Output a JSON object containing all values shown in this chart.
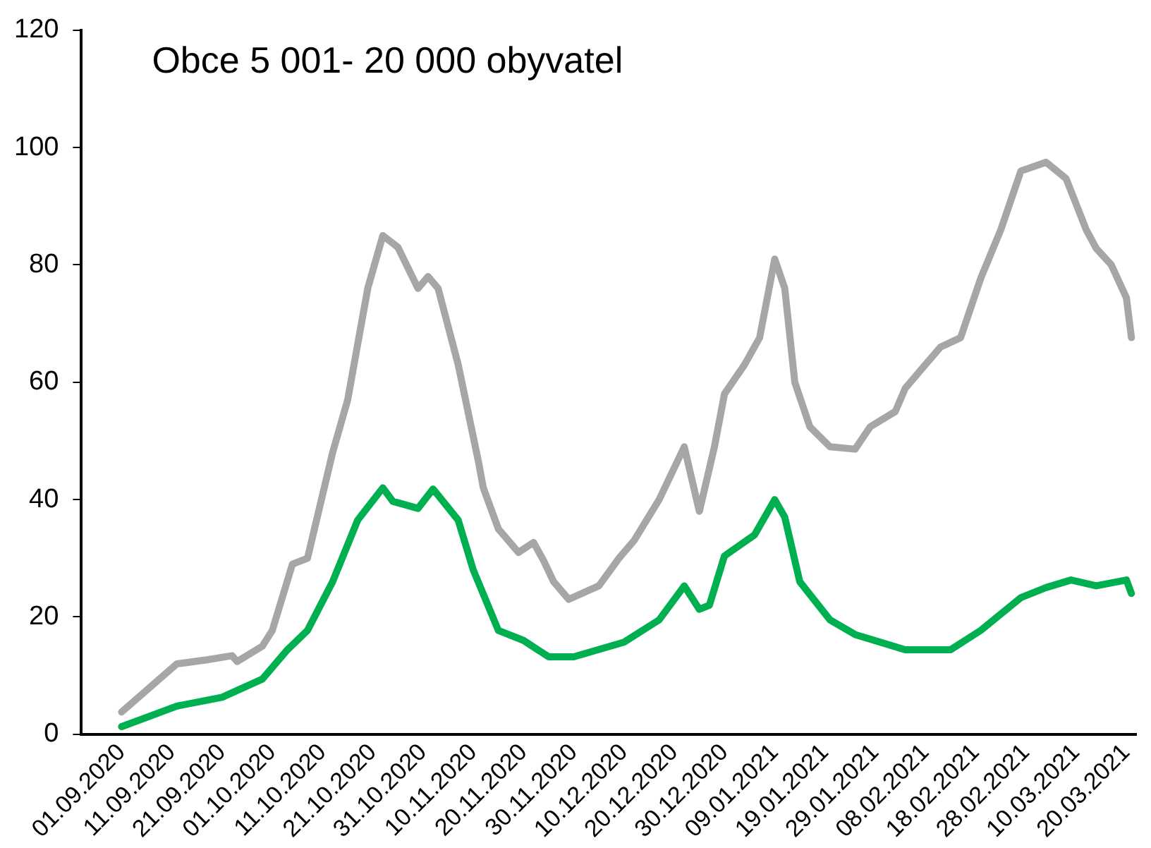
{
  "chart_data": {
    "type": "line",
    "title": "Obce 5 001- 20 000 obyvatel",
    "xlim": [
      "2020-08-24",
      "2021-03-22"
    ],
    "xticks": [
      {
        "value": "2020-09-01",
        "label": "01.09.2020"
      },
      {
        "value": "2020-09-11",
        "label": "11.09.2020"
      },
      {
        "value": "2020-09-21",
        "label": "21.09.2020"
      },
      {
        "value": "2020-10-01",
        "label": "01.10.2020"
      },
      {
        "value": "2020-10-11",
        "label": "11.10.2020"
      },
      {
        "value": "2020-10-21",
        "label": "21.10.2020"
      },
      {
        "value": "2020-10-31",
        "label": "31.10.2020"
      },
      {
        "value": "2020-11-10",
        "label": "10.11.2020"
      },
      {
        "value": "2020-11-20",
        "label": "20.11.2020"
      },
      {
        "value": "2020-11-30",
        "label": "30.11.2020"
      },
      {
        "value": "2020-12-10",
        "label": "10.12.2020"
      },
      {
        "value": "2020-12-20",
        "label": "20.12.2020"
      },
      {
        "value": "2020-12-30",
        "label": "30.12.2020"
      },
      {
        "value": "2021-01-09",
        "label": "09.01.2021"
      },
      {
        "value": "2021-01-19",
        "label": "19.01.2021"
      },
      {
        "value": "2021-01-29",
        "label": "29.01.2021"
      },
      {
        "value": "2021-02-08",
        "label": "08.02.2021"
      },
      {
        "value": "2021-02-18",
        "label": "18.02.2021"
      },
      {
        "value": "2021-02-28",
        "label": "28.02.2021"
      },
      {
        "value": "2021-03-10",
        "label": "10.03.2021"
      },
      {
        "value": "2021-03-20",
        "label": "20.03.2021"
      }
    ],
    "ylim": [
      0,
      120
    ],
    "yticks": [
      0,
      20,
      40,
      60,
      80,
      100,
      120
    ],
    "grid": false,
    "legend": false,
    "marker": "none",
    "line_style": "solid",
    "series": [
      {
        "color": "#a6a6a6",
        "x": [
          "2020-09-01",
          "2020-09-12",
          "2020-09-18",
          "2020-09-23",
          "2020-09-24",
          "2020-09-29",
          "2020-10-01",
          "2020-10-05",
          "2020-10-08",
          "2020-10-13",
          "2020-10-16",
          "2020-10-20",
          "2020-10-23",
          "2020-10-26",
          "2020-10-30",
          "2020-11-01",
          "2020-11-03",
          "2020-11-07",
          "2020-11-11",
          "2020-11-12",
          "2020-11-15",
          "2020-11-19",
          "2020-11-22",
          "2020-11-24",
          "2020-11-26",
          "2020-11-29",
          "2020-12-05",
          "2020-12-09",
          "2020-12-12",
          "2020-12-17",
          "2020-12-22",
          "2020-12-25",
          "2020-12-28",
          "2020-12-30",
          "2021-01-03",
          "2021-01-06",
          "2021-01-09",
          "2021-01-11",
          "2021-01-13",
          "2021-01-16",
          "2021-01-20",
          "2021-01-25",
          "2021-01-28",
          "2021-02-02",
          "2021-02-04",
          "2021-02-08",
          "2021-02-11",
          "2021-02-15",
          "2021-02-19",
          "2021-02-23",
          "2021-02-27",
          "2021-03-04",
          "2021-03-08",
          "2021-03-12",
          "2021-03-14",
          "2021-03-17",
          "2021-03-20",
          "2021-03-21"
        ],
        "values": [
          3.8,
          12,
          12.7,
          13.4,
          12.4,
          15,
          17.7,
          29,
          30,
          48,
          57,
          76,
          85,
          83,
          76,
          78,
          76,
          63,
          46.6,
          42,
          35,
          31,
          32.7,
          29.6,
          26,
          23,
          25.3,
          30,
          33,
          40,
          49,
          38,
          49,
          58,
          63,
          67.6,
          81,
          76,
          60,
          52.4,
          49,
          48.6,
          52.4,
          55,
          59,
          63,
          66,
          67.6,
          77.7,
          86,
          96,
          97.5,
          94.7,
          86,
          82.8,
          80,
          74.4,
          67.6
        ]
      },
      {
        "color": "#00b050",
        "x": [
          "2020-09-01",
          "2020-09-12",
          "2020-09-21",
          "2020-09-29",
          "2020-10-04",
          "2020-10-08",
          "2020-10-13",
          "2020-10-18",
          "2020-10-23",
          "2020-10-25",
          "2020-10-30",
          "2020-11-02",
          "2020-11-07",
          "2020-11-10",
          "2020-11-15",
          "2020-11-20",
          "2020-11-25",
          "2020-11-30",
          "2020-12-10",
          "2020-12-17",
          "2020-12-22",
          "2020-12-25",
          "2020-12-27",
          "2020-12-30",
          "2021-01-05",
          "2021-01-09",
          "2021-01-11",
          "2021-01-14",
          "2021-01-20",
          "2021-01-25",
          "2021-02-04",
          "2021-02-13",
          "2021-02-19",
          "2021-02-27",
          "2021-03-04",
          "2021-03-09",
          "2021-03-14",
          "2021-03-20",
          "2021-03-21"
        ],
        "values": [
          1.3,
          4.8,
          6.3,
          9.4,
          14.4,
          17.7,
          26,
          36.5,
          42,
          39.7,
          38.5,
          41.8,
          36.5,
          28,
          17.7,
          16,
          13.2,
          13.2,
          15.7,
          19.5,
          25.3,
          21.3,
          22,
          30.4,
          34,
          40,
          37,
          26,
          19.5,
          17,
          14.4,
          14.4,
          17.7,
          23.3,
          25,
          26.3,
          25.3,
          26.3,
          24
        ]
      }
    ]
  }
}
